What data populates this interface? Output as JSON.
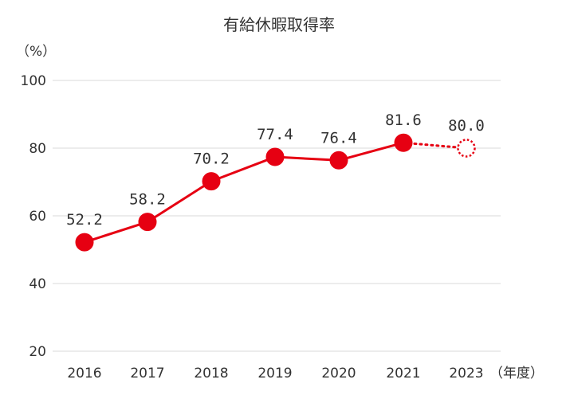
{
  "chart_data": {
    "type": "line",
    "title": "有給休暇取得率",
    "y_unit_label": "（%）",
    "x_unit_label": "（年度）",
    "categories": [
      "2016",
      "2017",
      "2018",
      "2019",
      "2020",
      "2021",
      "2023"
    ],
    "series": [
      {
        "values": [
          52.2,
          58.2,
          70.2,
          77.4,
          76.4,
          81.6,
          80.0
        ],
        "data_labels": [
          "52.2",
          "58.2",
          "70.2",
          "77.4",
          "76.4",
          "81.6",
          "80.0"
        ],
        "target_points": [
          "2023"
        ],
        "color": "#e60012"
      }
    ],
    "ylim": [
      20,
      100
    ],
    "yticks": [
      "20",
      "40",
      "60",
      "80",
      "100"
    ],
    "grid": true,
    "legend": "none"
  }
}
